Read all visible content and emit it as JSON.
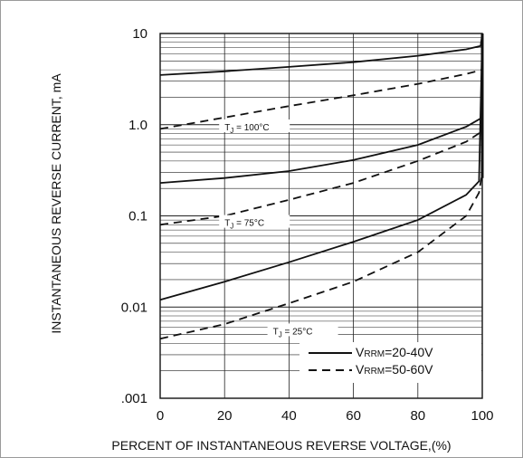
{
  "chart_data": {
    "type": "line",
    "xlabel": "PERCENT OF INSTANTANEOUS REVERSE VOLTAGE,(%)",
    "ylabel": "INSTANTANEOUS REVERSE CURRENT, mA",
    "xlim": [
      0,
      100
    ],
    "ylim": [
      0.001,
      10
    ],
    "yscale": "log",
    "grid": true,
    "x_ticks": [
      "0",
      "20",
      "40",
      "60",
      "80",
      "100"
    ],
    "y_ticks": [
      ".001",
      "0.01",
      "0.1",
      "1.0",
      "10"
    ],
    "legend_position": "bottom-right",
    "legend": [
      {
        "label": "VRRM=20-40V",
        "prefix": "V",
        "sub": "RRM",
        "suffix": "=20-40V",
        "style": "solid"
      },
      {
        "label": "VRRM=50-60V",
        "prefix": "V",
        "sub": "RRM",
        "suffix": "=50-60V",
        "style": "dashed"
      }
    ],
    "annotations": [
      {
        "T": "T",
        "sub": "J",
        "text": " = 100°C",
        "x": 20,
        "y": 0.95
      },
      {
        "T": "T",
        "sub": "J",
        "text": " = 75°C",
        "x": 20,
        "y": 0.085
      },
      {
        "T": "T",
        "sub": "J",
        "text": " = 25°C",
        "x": 35,
        "y": 0.0055
      }
    ],
    "series": [
      {
        "group": "TJ = 100°C",
        "style": "solid",
        "x": [
          0,
          20,
          40,
          60,
          80,
          95,
          99.5,
          100
        ],
        "y": [
          3.5,
          3.85,
          4.3,
          4.85,
          5.7,
          6.7,
          7.3,
          10
        ]
      },
      {
        "group": "TJ = 100°C",
        "style": "dashed",
        "x": [
          0,
          20,
          40,
          60,
          80,
          95,
          100
        ],
        "y": [
          0.9,
          1.2,
          1.6,
          2.1,
          2.8,
          3.6,
          4.0
        ]
      },
      {
        "group": "TJ = 75°C",
        "style": "solid",
        "x": [
          0,
          20,
          40,
          60,
          80,
          95,
          100
        ],
        "y": [
          0.23,
          0.26,
          0.31,
          0.41,
          0.6,
          0.95,
          1.2
        ]
      },
      {
        "group": "TJ = 75°C",
        "style": "dashed",
        "x": [
          0,
          20,
          40,
          60,
          80,
          95,
          100
        ],
        "y": [
          0.08,
          0.1,
          0.15,
          0.23,
          0.4,
          0.65,
          0.85
        ]
      },
      {
        "group": "TJ = 25°C",
        "style": "solid",
        "x": [
          0,
          20,
          40,
          60,
          80,
          95,
          99,
          100
        ],
        "y": [
          0.012,
          0.019,
          0.031,
          0.052,
          0.09,
          0.17,
          0.24,
          10
        ]
      },
      {
        "group": "TJ = 25°C",
        "style": "dashed",
        "x": [
          0,
          20,
          40,
          60,
          80,
          95,
          99,
          100
        ],
        "y": [
          0.0045,
          0.0065,
          0.011,
          0.019,
          0.04,
          0.1,
          0.18,
          0.3
        ]
      }
    ]
  }
}
